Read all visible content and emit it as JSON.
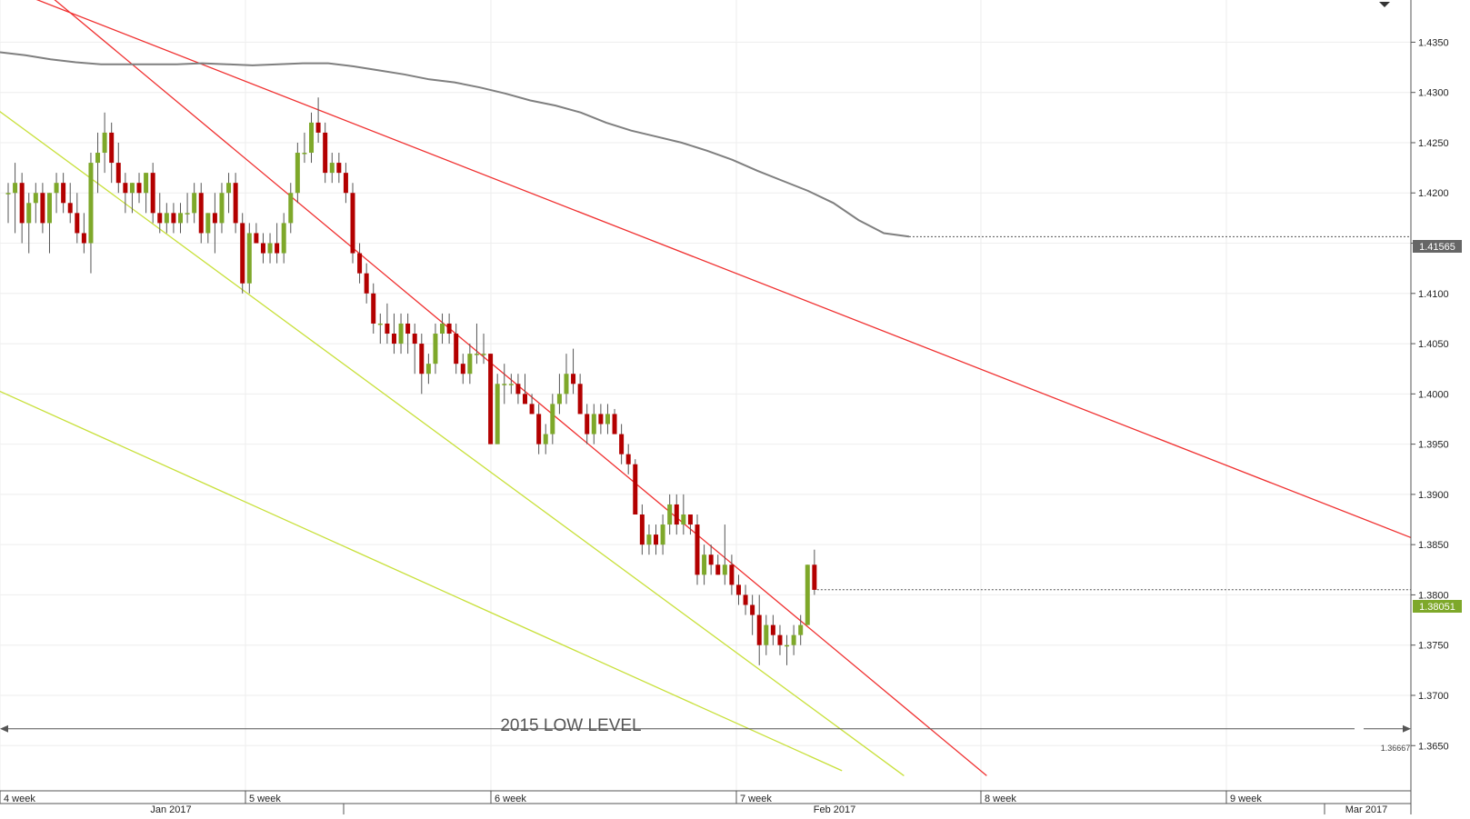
{
  "chart_data": {
    "type": "candlestick",
    "title": "",
    "xlabel": "",
    "ylabel": "",
    "ylim": [
      1.3605,
      1.4392
    ],
    "grid": true,
    "y_ticks": [
      1.365,
      1.37,
      1.375,
      1.38,
      1.385,
      1.39,
      1.395,
      1.4,
      1.405,
      1.41,
      1.415,
      1.42,
      1.425,
      1.43,
      1.435
    ],
    "y_tick_labels": [
      "1.3650",
      "1.3700",
      "1.3750",
      "1.3800",
      "1.3850",
      "1.3900",
      "1.3950",
      "1.4000",
      "1.4050",
      "1.4100",
      "1.4150",
      "1.4200",
      "1.4250",
      "1.4300",
      "1.4350"
    ],
    "week_labels": [
      "4 week",
      "5 week",
      "6 week",
      "7 week",
      "8 week",
      "9 week"
    ],
    "month_labels": [
      "Jan 2017",
      "Feb 2017",
      "Mar 2017"
    ],
    "annotation": "2015 LOW LEVEL",
    "level_2015_low": 1.36667,
    "level_2015_low_label": "1.36667",
    "current_price": 1.38051,
    "current_price_label": "1.38051",
    "ma_last_value": 1.41565,
    "ma_last_label": "1.41565",
    "colors": {
      "bull": "#7ea82a",
      "bear": "#b30000",
      "wick": "#555555",
      "moving_average": "#7f7f7f",
      "resistance": "#f03030",
      "support": "#c8e03a",
      "grid": "#eeeeee"
    },
    "candles": [
      [
        1.42,
        1.421,
        1.417,
        1.42
      ],
      [
        1.42,
        1.423,
        1.416,
        1.421
      ],
      [
        1.421,
        1.422,
        1.415,
        1.417
      ],
      [
        1.417,
        1.42,
        1.414,
        1.419
      ],
      [
        1.419,
        1.421,
        1.417,
        1.42
      ],
      [
        1.42,
        1.421,
        1.416,
        1.417
      ],
      [
        1.417,
        1.42,
        1.414,
        1.42
      ],
      [
        1.42,
        1.422,
        1.418,
        1.421
      ],
      [
        1.421,
        1.422,
        1.418,
        1.419
      ],
      [
        1.419,
        1.421,
        1.417,
        1.418
      ],
      [
        1.418,
        1.42,
        1.415,
        1.416
      ],
      [
        1.416,
        1.418,
        1.414,
        1.415
      ],
      [
        1.415,
        1.424,
        1.412,
        1.423
      ],
      [
        1.423,
        1.426,
        1.42,
        1.424
      ],
      [
        1.424,
        1.428,
        1.422,
        1.426
      ],
      [
        1.426,
        1.427,
        1.421,
        1.423
      ],
      [
        1.423,
        1.425,
        1.42,
        1.421
      ],
      [
        1.421,
        1.422,
        1.418,
        1.42
      ],
      [
        1.42,
        1.421,
        1.418,
        1.421
      ],
      [
        1.421,
        1.422,
        1.419,
        1.42
      ],
      [
        1.42,
        1.422,
        1.418,
        1.422
      ],
      [
        1.422,
        1.423,
        1.417,
        1.418
      ],
      [
        1.418,
        1.42,
        1.416,
        1.417
      ],
      [
        1.417,
        1.419,
        1.416,
        1.418
      ],
      [
        1.418,
        1.419,
        1.416,
        1.417
      ],
      [
        1.417,
        1.419,
        1.416,
        1.418
      ],
      [
        1.418,
        1.42,
        1.417,
        1.418
      ],
      [
        1.418,
        1.421,
        1.417,
        1.42
      ],
      [
        1.42,
        1.421,
        1.415,
        1.416
      ],
      [
        1.416,
        1.418,
        1.415,
        1.418
      ],
      [
        1.418,
        1.42,
        1.414,
        1.417
      ],
      [
        1.417,
        1.421,
        1.416,
        1.42
      ],
      [
        1.42,
        1.422,
        1.418,
        1.421
      ],
      [
        1.421,
        1.422,
        1.416,
        1.417
      ],
      [
        1.417,
        1.418,
        1.41,
        1.411
      ],
      [
        1.411,
        1.417,
        1.41,
        1.416
      ],
      [
        1.416,
        1.417,
        1.415,
        1.415
      ],
      [
        1.415,
        1.416,
        1.413,
        1.414
      ],
      [
        1.414,
        1.416,
        1.413,
        1.415
      ],
      [
        1.415,
        1.417,
        1.413,
        1.414
      ],
      [
        1.414,
        1.418,
        1.413,
        1.417
      ],
      [
        1.417,
        1.421,
        1.416,
        1.42
      ],
      [
        1.42,
        1.425,
        1.419,
        1.424
      ],
      [
        1.424,
        1.426,
        1.423,
        1.424
      ],
      [
        1.424,
        1.428,
        1.423,
        1.427
      ],
      [
        1.427,
        1.4295,
        1.425,
        1.426
      ],
      [
        1.426,
        1.427,
        1.421,
        1.422
      ],
      [
        1.422,
        1.424,
        1.421,
        1.423
      ],
      [
        1.423,
        1.424,
        1.421,
        1.422
      ],
      [
        1.422,
        1.423,
        1.419,
        1.42
      ],
      [
        1.42,
        1.421,
        1.413,
        1.414
      ],
      [
        1.414,
        1.415,
        1.411,
        1.412
      ],
      [
        1.412,
        1.413,
        1.409,
        1.41
      ],
      [
        1.41,
        1.411,
        1.406,
        1.407
      ],
      [
        1.407,
        1.408,
        1.405,
        1.407
      ],
      [
        1.407,
        1.409,
        1.405,
        1.406
      ],
      [
        1.406,
        1.408,
        1.404,
        1.405
      ],
      [
        1.405,
        1.408,
        1.404,
        1.407
      ],
      [
        1.407,
        1.408,
        1.404,
        1.406
      ],
      [
        1.406,
        1.407,
        1.402,
        1.405
      ],
      [
        1.405,
        1.406,
        1.4,
        1.402
      ],
      [
        1.402,
        1.404,
        1.401,
        1.403
      ],
      [
        1.403,
        1.407,
        1.402,
        1.406
      ],
      [
        1.406,
        1.408,
        1.405,
        1.407
      ],
      [
        1.407,
        1.408,
        1.405,
        1.406
      ],
      [
        1.406,
        1.407,
        1.402,
        1.403
      ],
      [
        1.403,
        1.404,
        1.401,
        1.402
      ],
      [
        1.402,
        1.405,
        1.401,
        1.404
      ],
      [
        1.404,
        1.407,
        1.403,
        1.404
      ],
      [
        1.404,
        1.406,
        1.403,
        1.404
      ],
      [
        1.404,
        1.404,
        1.395,
        1.395
      ],
      [
        1.395,
        1.402,
        1.395,
        1.401
      ],
      [
        1.401,
        1.403,
        1.399,
        1.401
      ],
      [
        1.401,
        1.402,
        1.4,
        1.401
      ],
      [
        1.401,
        1.402,
        1.399,
        1.4
      ],
      [
        1.4,
        1.402,
        1.399,
        1.399
      ],
      [
        1.399,
        1.4,
        1.398,
        1.398
      ],
      [
        1.398,
        1.399,
        1.394,
        1.395
      ],
      [
        1.395,
        1.397,
        1.394,
        1.396
      ],
      [
        1.396,
        1.4,
        1.395,
        1.399
      ],
      [
        1.399,
        1.402,
        1.398,
        1.4
      ],
      [
        1.4,
        1.404,
        1.399,
        1.402
      ],
      [
        1.402,
        1.4045,
        1.4,
        1.401
      ],
      [
        1.401,
        1.402,
        1.398,
        1.398
      ],
      [
        1.398,
        1.399,
        1.395,
        1.396
      ],
      [
        1.396,
        1.399,
        1.395,
        1.398
      ],
      [
        1.398,
        1.399,
        1.396,
        1.397
      ],
      [
        1.397,
        1.399,
        1.396,
        1.398
      ],
      [
        1.398,
        1.3985,
        1.396,
        1.396
      ],
      [
        1.396,
        1.397,
        1.393,
        1.394
      ],
      [
        1.394,
        1.395,
        1.392,
        1.393
      ],
      [
        1.393,
        1.3935,
        1.388,
        1.388
      ],
      [
        1.388,
        1.389,
        1.384,
        1.385
      ],
      [
        1.385,
        1.387,
        1.384,
        1.386
      ],
      [
        1.386,
        1.387,
        1.384,
        1.385
      ],
      [
        1.385,
        1.388,
        1.384,
        1.387
      ],
      [
        1.387,
        1.39,
        1.386,
        1.389
      ],
      [
        1.389,
        1.39,
        1.386,
        1.387
      ],
      [
        1.387,
        1.39,
        1.386,
        1.388
      ],
      [
        1.388,
        1.388,
        1.386,
        1.387
      ],
      [
        1.387,
        1.388,
        1.381,
        1.382
      ],
      [
        1.382,
        1.385,
        1.381,
        1.384
      ],
      [
        1.384,
        1.385,
        1.382,
        1.383
      ],
      [
        1.383,
        1.384,
        1.382,
        1.382
      ],
      [
        1.382,
        1.387,
        1.381,
        1.383
      ],
      [
        1.383,
        1.384,
        1.38,
        1.381
      ],
      [
        1.381,
        1.382,
        1.379,
        1.38
      ],
      [
        1.38,
        1.381,
        1.378,
        1.379
      ],
      [
        1.379,
        1.38,
        1.376,
        1.378
      ],
      [
        1.378,
        1.38,
        1.373,
        1.375
      ],
      [
        1.375,
        1.378,
        1.374,
        1.377
      ],
      [
        1.377,
        1.378,
        1.375,
        1.376
      ],
      [
        1.376,
        1.377,
        1.374,
        1.375
      ],
      [
        1.375,
        1.376,
        1.373,
        1.375
      ],
      [
        1.375,
        1.377,
        1.374,
        1.376
      ],
      [
        1.376,
        1.378,
        1.375,
        1.377
      ],
      [
        1.377,
        1.383,
        1.377,
        1.383
      ],
      [
        1.383,
        1.3845,
        1.38,
        1.3805
      ]
    ],
    "moving_average": [
      [
        1.434,
        1.4337,
        1.4333,
        1.433,
        1.4328,
        1.4328,
        1.4328,
        1.4328,
        1.4329,
        1.4328,
        1.4327,
        1.4328,
        1.4329,
        1.4329,
        1.4326,
        1.4322,
        1.4318,
        1.4313,
        1.431,
        1.4305,
        1.4299,
        1.4292,
        1.4287,
        1.428,
        1.427,
        1.4262,
        1.4256,
        1.425,
        1.4242,
        1.4233,
        1.4222,
        1.4212,
        1.4202,
        1.419,
        1.4173,
        1.416,
        1.41565
      ]
    ],
    "trendlines": [
      {
        "kind": "resistance",
        "points": [
          [
            "c-8",
            1.4425
          ],
          [
            "end",
            1.3857
          ]
        ]
      },
      {
        "kind": "resistance",
        "points": [
          [
            "c-6",
            1.4465
          ],
          [
            "c142",
            1.362
          ]
        ]
      },
      {
        "kind": "support",
        "points": [
          [
            "c-2",
            1.4285
          ],
          [
            "c130",
            1.362
          ]
        ]
      },
      {
        "kind": "support",
        "points": [
          [
            "c-2",
            1.4005
          ],
          [
            "c121",
            1.3625
          ]
        ]
      }
    ]
  }
}
